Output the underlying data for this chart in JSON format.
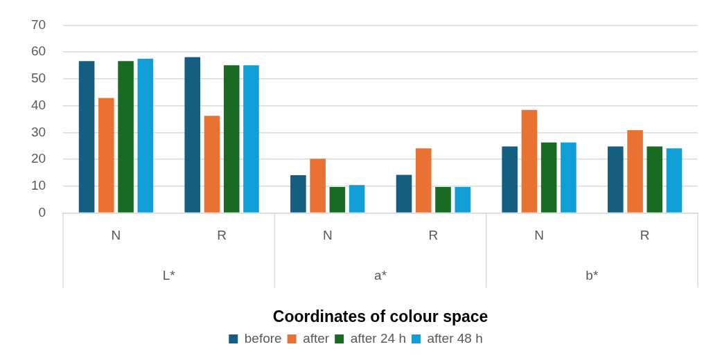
{
  "chart_data": {
    "type": "bar",
    "xlabel": "Coordinates of colour space",
    "categories": [
      "N",
      "R",
      "N",
      "R",
      "N",
      "R"
    ],
    "annotations": [
      "L*",
      "a*",
      "b*"
    ],
    "series": [
      {
        "name": "before",
        "color": "#165e80",
        "values": [
          56.6,
          58.1,
          14.1,
          14.2,
          24.8,
          24.8
        ]
      },
      {
        "name": "after",
        "color": "#e97132",
        "values": [
          42.9,
          36.2,
          20.2,
          24.1,
          38.4,
          30.9
        ]
      },
      {
        "name": "after 24 h",
        "color": "#196b24",
        "values": [
          56.6,
          55.1,
          9.7,
          9.7,
          26.3,
          24.8
        ]
      },
      {
        "name": "after 48 h",
        "color": "#0f9ed5",
        "values": [
          57.5,
          55.1,
          10.4,
          9.7,
          26.3,
          24.1
        ]
      }
    ],
    "ylim": [
      0,
      70
    ],
    "yticks": [
      0,
      10,
      20,
      30,
      40,
      50,
      60,
      70
    ],
    "grid": "y",
    "legend": "bottom"
  }
}
